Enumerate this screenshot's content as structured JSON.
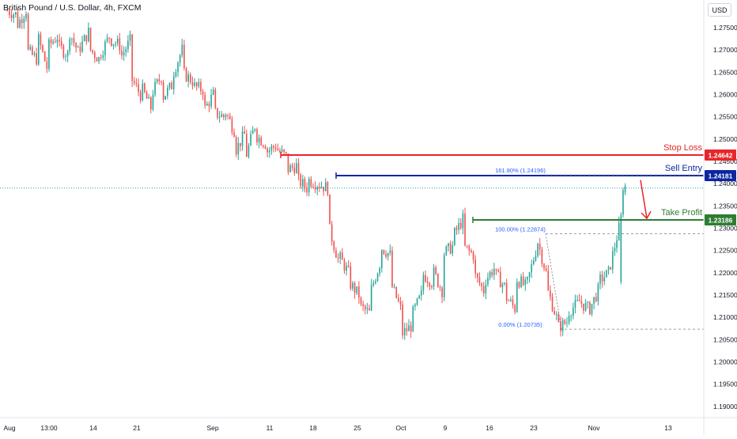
{
  "header": {
    "title": "British Pound / U.S. Dollar, 4h, FXCM",
    "currency": "USD"
  },
  "colors": {
    "up": "#26a69a",
    "down": "#ef5350",
    "stop_loss": "#e8252a",
    "sell_entry": "#0c26a0",
    "take_profit": "#2e7d32",
    "fib": "#2962ff",
    "current_price_line": "#26a69a"
  },
  "chart_data": {
    "type": "candlestick",
    "xlabel": "",
    "ylabel": "",
    "ylim": [
      1.1875,
      1.2812
    ],
    "y_ticks": [
      "1.27500",
      "1.27000",
      "1.26500",
      "1.26000",
      "1.25500",
      "1.25000",
      "1.24500",
      "1.24000",
      "1.23500",
      "1.23000",
      "1.22500",
      "1.22000",
      "1.21500",
      "1.21000",
      "1.20500",
      "1.20000",
      "1.19500",
      "1.19000"
    ],
    "x_ticks": [
      "Aug",
      "13:00",
      "14",
      "21",
      "Sep",
      "11",
      "18",
      "25",
      "Oct",
      "9",
      "16",
      "23",
      "Nov",
      "13"
    ],
    "price_path": [
      [
        1.279,
        1.278
      ],
      [
        1.275,
        1.279
      ],
      [
        1.27,
        1.268
      ],
      [
        1.274,
        1.266
      ],
      [
        1.2705,
        1.273
      ],
      [
        1.271,
        1.269
      ],
      [
        1.275,
        1.2695
      ],
      [
        1.2698,
        1.274
      ],
      [
        1.2705,
        1.268
      ],
      [
        1.2685,
        1.273
      ],
      [
        1.2725,
        1.271
      ],
      [
        1.268,
        1.272
      ],
      [
        1.264,
        1.26
      ],
      [
        1.262,
        1.257
      ],
      [
        1.26,
        1.264
      ],
      [
        1.259,
        1.262
      ],
      [
        1.264,
        1.27
      ],
      [
        1.265,
        1.263
      ],
      [
        1.262,
        1.261
      ],
      [
        1.256,
        1.26
      ],
      [
        1.256,
        1.255
      ],
      [
        1.257,
        1.252
      ],
      [
        1.247,
        1.251
      ],
      [
        1.245,
        1.253
      ],
      [
        1.251,
        1.249
      ],
      [
        1.247,
        1.2485
      ],
      [
        1.248,
        1.246
      ],
      [
        1.243,
        1.244
      ],
      [
        1.241,
        1.239
      ],
      [
        1.241,
        1.24
      ],
      [
        1.24,
        1.239
      ],
      [
        1.231,
        1.223
      ],
      [
        1.224,
        1.22
      ],
      [
        1.218,
        1.215
      ],
      [
        1.2125,
        1.211
      ],
      [
        1.215,
        1.222
      ],
      [
        1.226,
        1.224
      ],
      [
        1.218,
        1.212
      ],
      [
        1.206,
        1.208
      ],
      [
        1.21,
        1.215
      ],
      [
        1.22,
        1.218
      ],
      [
        1.221,
        1.216
      ],
      [
        1.224,
        1.226
      ],
      [
        1.228,
        1.232
      ],
      [
        1.226,
        1.224
      ],
      [
        1.22,
        1.216
      ],
      [
        1.218,
        1.221
      ],
      [
        1.22,
        1.217
      ],
      [
        1.215,
        1.212
      ],
      [
        1.219,
        1.217
      ],
      [
        1.216,
        1.225
      ],
      [
        1.2287,
        1.22
      ],
      [
        1.217,
        1.21
      ],
      [
        1.2075,
        1.209
      ],
      [
        1.211,
        1.213
      ],
      [
        1.214,
        1.212
      ],
      [
        1.211,
        1.216
      ],
      [
        1.218,
        1.22
      ],
      [
        1.22,
        1.23
      ],
      [
        1.236,
        1.239
      ]
    ],
    "levels": [
      {
        "label": "Stop Loss",
        "value": 1.24642,
        "price_label": "1.24642"
      },
      {
        "label": "Sell Entry",
        "value": 1.24181,
        "price_label": "1.24181"
      },
      {
        "label": "Take Profit",
        "value": 1.23186,
        "price_label": "1.23186"
      }
    ],
    "fibonacci": [
      {
        "label": "161.80% (1.24196)",
        "value": 1.24196
      },
      {
        "label": "100.00% (1.22874)",
        "value": 1.22874
      },
      {
        "label": "0.00% (1.20735)",
        "value": 1.20735
      }
    ],
    "current_price": 1.239,
    "grid": false,
    "legend": "none"
  }
}
